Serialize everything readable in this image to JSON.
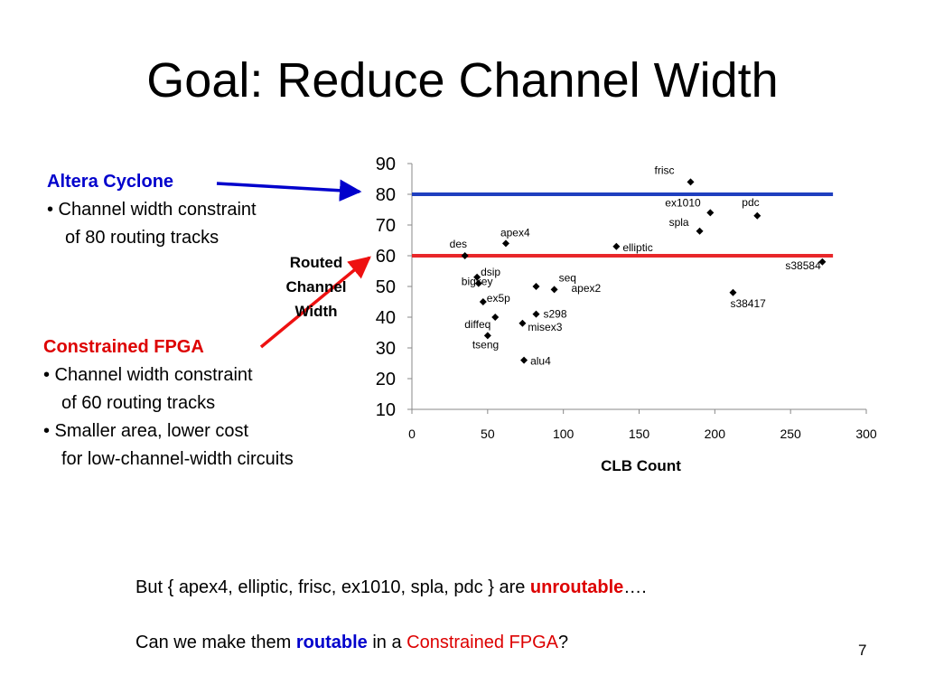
{
  "slide": {
    "title": "Goal: Reduce Channel Width",
    "page_number": "7"
  },
  "altera": {
    "heading": "Altera Cyclone",
    "line1": "•  Channel width constraint",
    "line2": "of 80 routing tracks"
  },
  "constrained": {
    "heading": "Constrained FPGA",
    "line1": "• Channel width constraint",
    "line2": "of 60 routing tracks",
    "line3": "• Smaller area, lower cost",
    "line4": "for low-channel-width circuits"
  },
  "bottom": {
    "line1_prefix": "But  { apex4, elliptic, frisc, ex1010, spla, pdc }  are ",
    "line1_emph": "unroutable",
    "line1_suffix": "….",
    "line2_prefix": "Can we make them ",
    "line2_emph": "routable",
    "line2_mid": " in a ",
    "line2_red": "Constrained FPGA",
    "line2_suffix": "?"
  },
  "colors": {
    "blue": "#0000cc",
    "red": "#dd0000",
    "line_blue": "#1f3fbf",
    "line_red": "#e8272a"
  },
  "chart_data": {
    "type": "scatter",
    "xlabel": "CLB Count",
    "ylabel_lines": [
      "Routed",
      "Channel",
      "Width"
    ],
    "xlim": [
      0,
      300
    ],
    "ylim": [
      10,
      90
    ],
    "xticks": [
      0,
      50,
      100,
      150,
      200,
      250,
      300
    ],
    "yticks": [
      10,
      20,
      30,
      40,
      50,
      60,
      70,
      80,
      90
    ],
    "grid": false,
    "marker": "diamond",
    "reference_lines": [
      {
        "y": 80,
        "x_end": 278,
        "color": "#1f3fbf"
      },
      {
        "y": 60,
        "x_end": 278,
        "color": "#e8272a"
      }
    ],
    "points": [
      {
        "name": "frisc",
        "x": 184,
        "y": 84
      },
      {
        "name": "ex1010",
        "x": 197,
        "y": 74
      },
      {
        "name": "pdc",
        "x": 228,
        "y": 73
      },
      {
        "name": "spla",
        "x": 190,
        "y": 68
      },
      {
        "name": "apex4",
        "x": 62,
        "y": 64
      },
      {
        "name": "elliptic",
        "x": 135,
        "y": 63
      },
      {
        "name": "des",
        "x": 35,
        "y": 60
      },
      {
        "name": "s38584",
        "x": 271,
        "y": 58
      },
      {
        "name": "dsip",
        "x": 43,
        "y": 53
      },
      {
        "name": "seq",
        "x": 94,
        "y": 49
      },
      {
        "name": "bigkey",
        "x": 44,
        "y": 51
      },
      {
        "name": "apex2",
        "x": 82,
        "y": 50
      },
      {
        "name": "ex5p",
        "x": 47,
        "y": 45
      },
      {
        "name": "s38417",
        "x": 212,
        "y": 48
      },
      {
        "name": "s298",
        "x": 82,
        "y": 41
      },
      {
        "name": "diffeq",
        "x": 55,
        "y": 40
      },
      {
        "name": "misex3",
        "x": 73,
        "y": 38
      },
      {
        "name": "tseng",
        "x": 50,
        "y": 34
      },
      {
        "name": "alu4",
        "x": 74,
        "y": 26
      }
    ]
  }
}
